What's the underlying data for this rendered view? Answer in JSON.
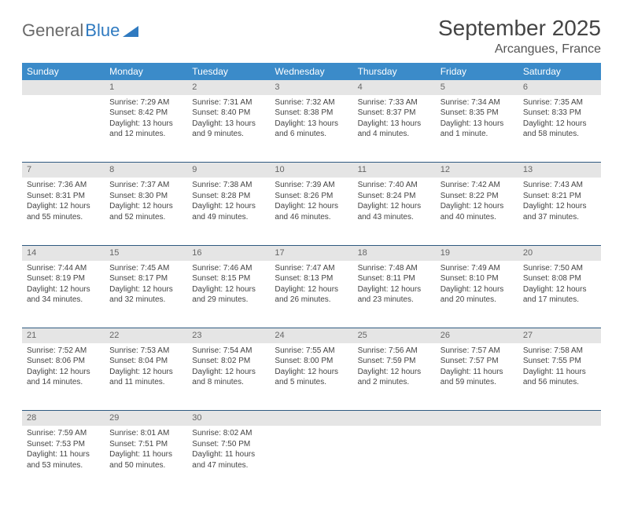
{
  "logo": {
    "text1": "General",
    "text2": "Blue"
  },
  "title": "September 2025",
  "location": "Arcangues, France",
  "colors": {
    "header_bg": "#3b8bc9",
    "header_text": "#ffffff",
    "daynum_bg": "#e5e5e5",
    "daynum_text": "#666666",
    "body_text": "#444444",
    "rule": "#2f5a80",
    "logo_gray": "#6a6a6a",
    "logo_blue": "#2f7ac0"
  },
  "weekdays": [
    "Sunday",
    "Monday",
    "Tuesday",
    "Wednesday",
    "Thursday",
    "Friday",
    "Saturday"
  ],
  "weeks": [
    [
      null,
      {
        "n": "1",
        "sr": "Sunrise: 7:29 AM",
        "ss": "Sunset: 8:42 PM",
        "d1": "Daylight: 13 hours",
        "d2": "and 12 minutes."
      },
      {
        "n": "2",
        "sr": "Sunrise: 7:31 AM",
        "ss": "Sunset: 8:40 PM",
        "d1": "Daylight: 13 hours",
        "d2": "and 9 minutes."
      },
      {
        "n": "3",
        "sr": "Sunrise: 7:32 AM",
        "ss": "Sunset: 8:38 PM",
        "d1": "Daylight: 13 hours",
        "d2": "and 6 minutes."
      },
      {
        "n": "4",
        "sr": "Sunrise: 7:33 AM",
        "ss": "Sunset: 8:37 PM",
        "d1": "Daylight: 13 hours",
        "d2": "and 4 minutes."
      },
      {
        "n": "5",
        "sr": "Sunrise: 7:34 AM",
        "ss": "Sunset: 8:35 PM",
        "d1": "Daylight: 13 hours",
        "d2": "and 1 minute."
      },
      {
        "n": "6",
        "sr": "Sunrise: 7:35 AM",
        "ss": "Sunset: 8:33 PM",
        "d1": "Daylight: 12 hours",
        "d2": "and 58 minutes."
      }
    ],
    [
      {
        "n": "7",
        "sr": "Sunrise: 7:36 AM",
        "ss": "Sunset: 8:31 PM",
        "d1": "Daylight: 12 hours",
        "d2": "and 55 minutes."
      },
      {
        "n": "8",
        "sr": "Sunrise: 7:37 AM",
        "ss": "Sunset: 8:30 PM",
        "d1": "Daylight: 12 hours",
        "d2": "and 52 minutes."
      },
      {
        "n": "9",
        "sr": "Sunrise: 7:38 AM",
        "ss": "Sunset: 8:28 PM",
        "d1": "Daylight: 12 hours",
        "d2": "and 49 minutes."
      },
      {
        "n": "10",
        "sr": "Sunrise: 7:39 AM",
        "ss": "Sunset: 8:26 PM",
        "d1": "Daylight: 12 hours",
        "d2": "and 46 minutes."
      },
      {
        "n": "11",
        "sr": "Sunrise: 7:40 AM",
        "ss": "Sunset: 8:24 PM",
        "d1": "Daylight: 12 hours",
        "d2": "and 43 minutes."
      },
      {
        "n": "12",
        "sr": "Sunrise: 7:42 AM",
        "ss": "Sunset: 8:22 PM",
        "d1": "Daylight: 12 hours",
        "d2": "and 40 minutes."
      },
      {
        "n": "13",
        "sr": "Sunrise: 7:43 AM",
        "ss": "Sunset: 8:21 PM",
        "d1": "Daylight: 12 hours",
        "d2": "and 37 minutes."
      }
    ],
    [
      {
        "n": "14",
        "sr": "Sunrise: 7:44 AM",
        "ss": "Sunset: 8:19 PM",
        "d1": "Daylight: 12 hours",
        "d2": "and 34 minutes."
      },
      {
        "n": "15",
        "sr": "Sunrise: 7:45 AM",
        "ss": "Sunset: 8:17 PM",
        "d1": "Daylight: 12 hours",
        "d2": "and 32 minutes."
      },
      {
        "n": "16",
        "sr": "Sunrise: 7:46 AM",
        "ss": "Sunset: 8:15 PM",
        "d1": "Daylight: 12 hours",
        "d2": "and 29 minutes."
      },
      {
        "n": "17",
        "sr": "Sunrise: 7:47 AM",
        "ss": "Sunset: 8:13 PM",
        "d1": "Daylight: 12 hours",
        "d2": "and 26 minutes."
      },
      {
        "n": "18",
        "sr": "Sunrise: 7:48 AM",
        "ss": "Sunset: 8:11 PM",
        "d1": "Daylight: 12 hours",
        "d2": "and 23 minutes."
      },
      {
        "n": "19",
        "sr": "Sunrise: 7:49 AM",
        "ss": "Sunset: 8:10 PM",
        "d1": "Daylight: 12 hours",
        "d2": "and 20 minutes."
      },
      {
        "n": "20",
        "sr": "Sunrise: 7:50 AM",
        "ss": "Sunset: 8:08 PM",
        "d1": "Daylight: 12 hours",
        "d2": "and 17 minutes."
      }
    ],
    [
      {
        "n": "21",
        "sr": "Sunrise: 7:52 AM",
        "ss": "Sunset: 8:06 PM",
        "d1": "Daylight: 12 hours",
        "d2": "and 14 minutes."
      },
      {
        "n": "22",
        "sr": "Sunrise: 7:53 AM",
        "ss": "Sunset: 8:04 PM",
        "d1": "Daylight: 12 hours",
        "d2": "and 11 minutes."
      },
      {
        "n": "23",
        "sr": "Sunrise: 7:54 AM",
        "ss": "Sunset: 8:02 PM",
        "d1": "Daylight: 12 hours",
        "d2": "and 8 minutes."
      },
      {
        "n": "24",
        "sr": "Sunrise: 7:55 AM",
        "ss": "Sunset: 8:00 PM",
        "d1": "Daylight: 12 hours",
        "d2": "and 5 minutes."
      },
      {
        "n": "25",
        "sr": "Sunrise: 7:56 AM",
        "ss": "Sunset: 7:59 PM",
        "d1": "Daylight: 12 hours",
        "d2": "and 2 minutes."
      },
      {
        "n": "26",
        "sr": "Sunrise: 7:57 AM",
        "ss": "Sunset: 7:57 PM",
        "d1": "Daylight: 11 hours",
        "d2": "and 59 minutes."
      },
      {
        "n": "27",
        "sr": "Sunrise: 7:58 AM",
        "ss": "Sunset: 7:55 PM",
        "d1": "Daylight: 11 hours",
        "d2": "and 56 minutes."
      }
    ],
    [
      {
        "n": "28",
        "sr": "Sunrise: 7:59 AM",
        "ss": "Sunset: 7:53 PM",
        "d1": "Daylight: 11 hours",
        "d2": "and 53 minutes."
      },
      {
        "n": "29",
        "sr": "Sunrise: 8:01 AM",
        "ss": "Sunset: 7:51 PM",
        "d1": "Daylight: 11 hours",
        "d2": "and 50 minutes."
      },
      {
        "n": "30",
        "sr": "Sunrise: 8:02 AM",
        "ss": "Sunset: 7:50 PM",
        "d1": "Daylight: 11 hours",
        "d2": "and 47 minutes."
      },
      null,
      null,
      null,
      null
    ]
  ]
}
